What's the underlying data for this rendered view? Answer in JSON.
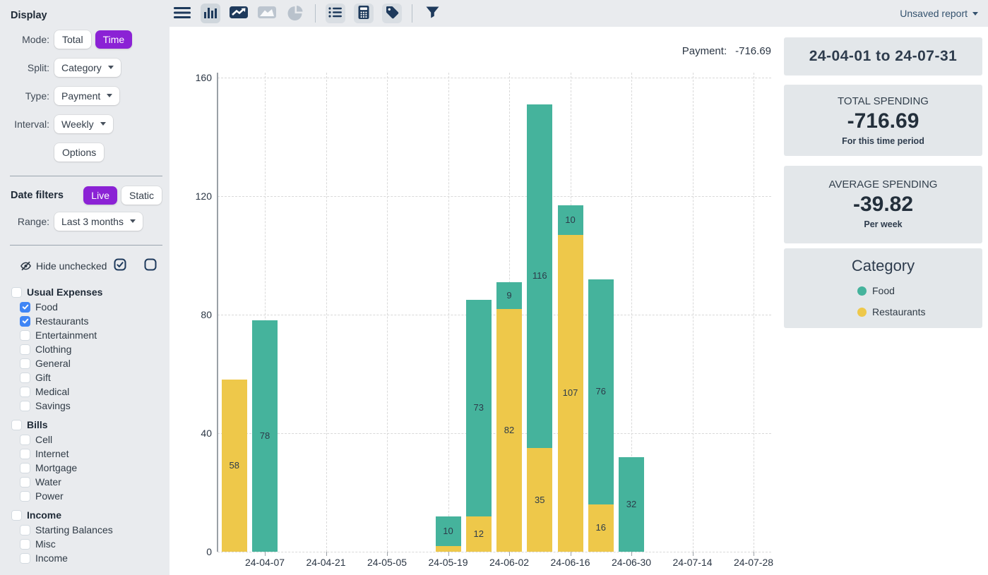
{
  "toolbar": {
    "unsaved_report_label": "Unsaved report"
  },
  "sidebar": {
    "display": {
      "heading": "Display",
      "mode_label": "Mode:",
      "mode_options": [
        "Total",
        "Time"
      ],
      "mode_selected": "Time",
      "split_label": "Split:",
      "split_value": "Category",
      "type_label": "Type:",
      "type_value": "Payment",
      "interval_label": "Interval:",
      "interval_value": "Weekly",
      "options_label": "Options"
    },
    "date_filters": {
      "heading": "Date filters",
      "options": [
        "Live",
        "Static"
      ],
      "selected": "Live",
      "range_label": "Range:",
      "range_value": "Last 3 months"
    },
    "hide_unchecked_label": "Hide unchecked",
    "groups": [
      {
        "label": "Usual Expenses",
        "checked": false,
        "items": [
          {
            "label": "Food",
            "checked": true
          },
          {
            "label": "Restaurants",
            "checked": true
          },
          {
            "label": "Entertainment",
            "checked": false
          },
          {
            "label": "Clothing",
            "checked": false
          },
          {
            "label": "General",
            "checked": false
          },
          {
            "label": "Gift",
            "checked": false
          },
          {
            "label": "Medical",
            "checked": false
          },
          {
            "label": "Savings",
            "checked": false
          }
        ]
      },
      {
        "label": "Bills",
        "checked": false,
        "items": [
          {
            "label": "Cell",
            "checked": false
          },
          {
            "label": "Internet",
            "checked": false
          },
          {
            "label": "Mortgage",
            "checked": false
          },
          {
            "label": "Water",
            "checked": false
          },
          {
            "label": "Power",
            "checked": false
          }
        ]
      },
      {
        "label": "Income",
        "checked": false,
        "items": [
          {
            "label": "Starting Balances",
            "checked": false
          },
          {
            "label": "Misc",
            "checked": false
          },
          {
            "label": "Income",
            "checked": false
          }
        ]
      }
    ]
  },
  "chart_header": {
    "label": "Payment:",
    "value": "-716.69"
  },
  "chart_data": {
    "type": "bar",
    "stacked": true,
    "interval": "Weekly",
    "title": "Payment: -716.69",
    "xlabel": "",
    "ylabel": "",
    "ylim": [
      0,
      160
    ],
    "yticks": [
      0,
      40,
      80,
      120,
      160
    ],
    "grid": true,
    "legend_position": "right-panel",
    "xtick_labels": [
      "24-04-07",
      "24-04-21",
      "24-05-05",
      "24-05-19",
      "24-06-02",
      "24-06-16",
      "24-06-30",
      "24-07-14",
      "24-07-28"
    ],
    "tick_slots": [
      1,
      3,
      5,
      7,
      9,
      11,
      13,
      15,
      17
    ],
    "series": [
      {
        "name": "Food",
        "color": "#45b39c"
      },
      {
        "name": "Restaurants",
        "color": "#eec84a"
      }
    ],
    "bars": [
      {
        "slot": 0,
        "week": "24-03-31",
        "segments": [
          {
            "series": "Restaurants",
            "value": 58,
            "label": "58"
          }
        ]
      },
      {
        "slot": 1,
        "week": "24-04-07",
        "segments": [
          {
            "series": "Food",
            "value": 78,
            "label": "78"
          }
        ]
      },
      {
        "slot": 7,
        "week": "24-05-19",
        "segments": [
          {
            "series": "Restaurants",
            "value": 2,
            "label": ""
          },
          {
            "series": "Food",
            "value": 10,
            "label": "10"
          }
        ]
      },
      {
        "slot": 8,
        "week": "24-05-26",
        "segments": [
          {
            "series": "Restaurants",
            "value": 12,
            "label": "12"
          },
          {
            "series": "Food",
            "value": 73,
            "label": "73"
          }
        ]
      },
      {
        "slot": 9,
        "week": "24-06-02",
        "segments": [
          {
            "series": "Restaurants",
            "value": 82,
            "label": "82"
          },
          {
            "series": "Food",
            "value": 9,
            "label": "9"
          }
        ]
      },
      {
        "slot": 10,
        "week": "24-06-09",
        "segments": [
          {
            "series": "Restaurants",
            "value": 35,
            "label": "35"
          },
          {
            "series": "Food",
            "value": 116,
            "label": "116"
          }
        ]
      },
      {
        "slot": 11,
        "week": "24-06-16",
        "segments": [
          {
            "series": "Restaurants",
            "value": 107,
            "label": "107"
          },
          {
            "series": "Food",
            "value": 10,
            "label": "10"
          }
        ]
      },
      {
        "slot": 12,
        "week": "24-06-23",
        "segments": [
          {
            "series": "Restaurants",
            "value": 16,
            "label": "16"
          },
          {
            "series": "Food",
            "value": 76,
            "label": "76"
          }
        ]
      },
      {
        "slot": 13,
        "week": "24-06-30",
        "segments": [
          {
            "series": "Food",
            "value": 32,
            "label": "32"
          }
        ]
      }
    ]
  },
  "right_panel": {
    "date_range": "24-04-01 to 24-07-31",
    "total_card": {
      "title": "TOTAL SPENDING",
      "value": "-716.69",
      "subtitle": "For this time period"
    },
    "average_card": {
      "title": "AVERAGE SPENDING",
      "value": "-39.82",
      "subtitle": "Per week"
    },
    "category_card": {
      "title": "Category",
      "items": [
        {
          "label": "Food",
          "color": "#45b39c"
        },
        {
          "label": "Restaurants",
          "color": "#eec84a"
        }
      ]
    }
  },
  "colors": {
    "accent_purple": "#8b22d5",
    "checkbox_blue": "#3f85f5",
    "icon_navy": "#1e3a5c",
    "panel_gray": "#e9ebee",
    "card_gray": "#e3e7ea",
    "food_teal": "#45b39c",
    "restaurants_yellow": "#eec84a"
  }
}
